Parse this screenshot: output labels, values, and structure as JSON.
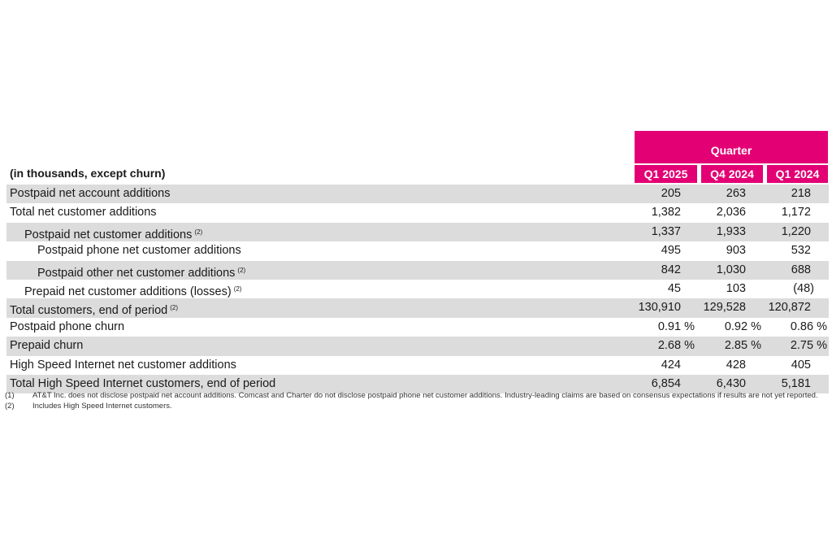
{
  "header": {
    "group_label": "Quarter",
    "units_label": "(in thousands, except churn)",
    "columns": [
      "Q1 2025",
      "Q4 2024",
      "Q1 2024"
    ]
  },
  "rows": [
    {
      "label": "Postpaid net account additions",
      "note": "",
      "values": [
        "205",
        "263",
        "218"
      ]
    },
    {
      "label": "Total net customer additions",
      "note": "",
      "values": [
        "1,382",
        "2,036",
        "1,172"
      ]
    },
    {
      "label": "Postpaid net customer additions",
      "note": "(2)",
      "values": [
        "1,337",
        "1,933",
        "1,220"
      ]
    },
    {
      "label": "Postpaid phone net customer additions",
      "note": "",
      "values": [
        "495",
        "903",
        "532"
      ]
    },
    {
      "label": "Postpaid other net customer additions",
      "note": "(2)",
      "values": [
        "842",
        "1,030",
        "688"
      ]
    },
    {
      "label": "Prepaid net customer additions (losses)",
      "note": "(2)",
      "values": [
        "45",
        "103",
        "(48)"
      ]
    },
    {
      "label": "Total customers, end of period",
      "note": "(2)",
      "values": [
        "130,910",
        "129,528",
        "120,872"
      ]
    },
    {
      "label": "Postpaid phone churn",
      "note": "",
      "values": [
        "0.91 %",
        "0.92 %",
        "0.86 %"
      ]
    },
    {
      "label": "Prepaid churn",
      "note": "",
      "values": [
        "2.68 %",
        "2.85 %",
        "2.75 %"
      ]
    },
    {
      "label": "High Speed Internet net customer additions",
      "note": "",
      "values": [
        "424",
        "428",
        "405"
      ]
    },
    {
      "label": "Total High Speed Internet customers, end of period",
      "note": "",
      "values": [
        "6,854",
        "6,430",
        "5,181"
      ]
    }
  ],
  "footnotes": [
    {
      "num": "(1)",
      "text": "AT&T Inc. does not disclose postpaid net account additions. Comcast and Charter do not disclose postpaid phone net customer additions. Industry-leading claims are based on consensus expectations if results are not yet reported."
    },
    {
      "num": "(2)",
      "text": "Includes High Speed Internet customers."
    }
  ],
  "colors": {
    "accent": "#e20074",
    "row_shade": "#dcdcdc"
  }
}
